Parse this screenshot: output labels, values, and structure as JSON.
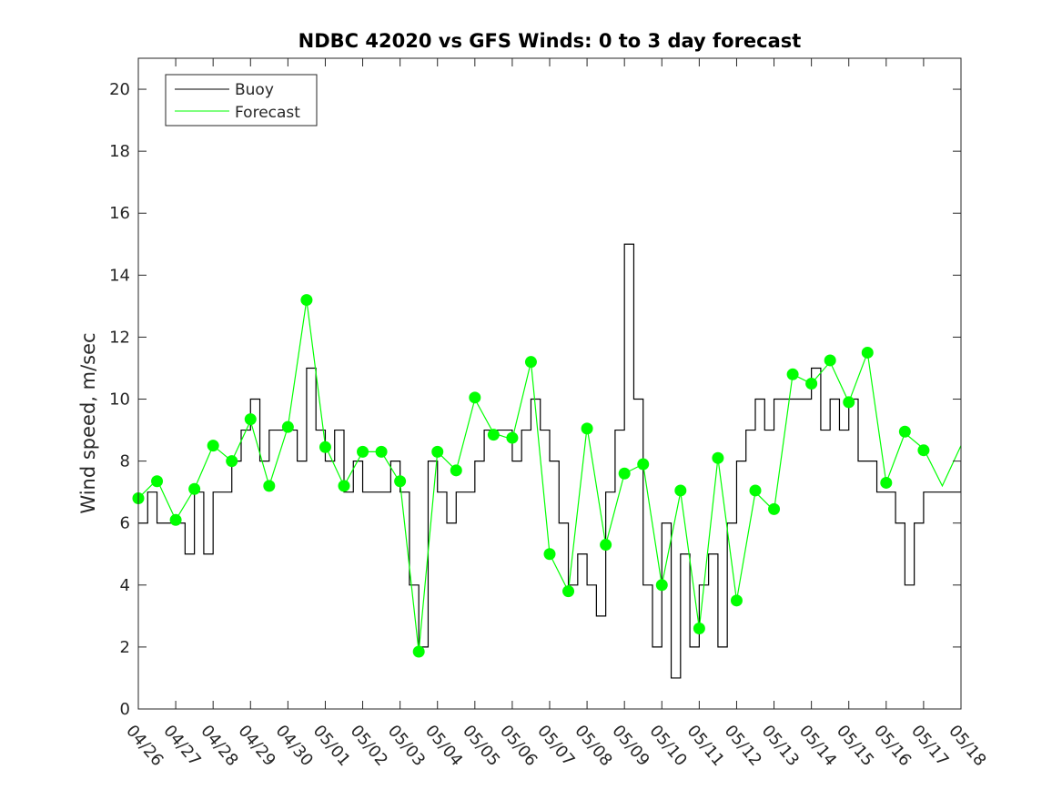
{
  "chart_data": {
    "type": "line",
    "title": "NDBC 42020 vs GFS Winds: 0 to 3 day forecast",
    "xlabel": "",
    "ylabel": "Wind speed, m/sec",
    "ylim": [
      0,
      21
    ],
    "xlim": [
      0,
      22
    ],
    "yticks": [
      0,
      2,
      4,
      6,
      8,
      10,
      12,
      14,
      16,
      18,
      20
    ],
    "xtick_labels": [
      "04/26",
      "04/27",
      "04/28",
      "04/29",
      "04/30",
      "05/01",
      "05/02",
      "05/03",
      "05/04",
      "05/05",
      "05/06",
      "05/07",
      "05/08",
      "05/09",
      "05/10",
      "05/11",
      "05/12",
      "05/13",
      "05/14",
      "05/15",
      "05/16",
      "05/17",
      "05/18"
    ],
    "grid": false,
    "legend": {
      "placement": "top-left",
      "entries": [
        "Buoy",
        "Forecast"
      ]
    },
    "colors": {
      "buoy": "#000000",
      "forecast": "#00ff00",
      "axis": "#262626"
    },
    "series": [
      {
        "name": "Buoy",
        "x_unit": "days since 04/26",
        "x": [
          0,
          0.25,
          0.5,
          0.75,
          1,
          1.25,
          1.5,
          1.75,
          2,
          2.25,
          2.5,
          2.75,
          3,
          3.25,
          3.5,
          3.75,
          4,
          4.25,
          4.5,
          4.75,
          5,
          5.25,
          5.5,
          5.75,
          6,
          6.25,
          6.5,
          6.75,
          7,
          7.25,
          7.5,
          7.75,
          8,
          8.25,
          8.5,
          8.75,
          9,
          9.25,
          9.5,
          9.75,
          10,
          10.25,
          10.5,
          10.75,
          11,
          11.25,
          11.5,
          11.75,
          12,
          12.25,
          12.5,
          12.75,
          13,
          13.25,
          13.5,
          13.75,
          14,
          14.25,
          14.5,
          14.75,
          15,
          15.25,
          15.5,
          15.75,
          16,
          16.25,
          16.5,
          16.75,
          17,
          17.25,
          17.5,
          17.75,
          18,
          18.25,
          18.5,
          18.75,
          19,
          19.25,
          19.5,
          19.75,
          20,
          20.25,
          20.5,
          20.75,
          21,
          21.25,
          21.5,
          21.75,
          22
        ],
        "y": [
          6,
          7,
          6,
          6,
          6,
          5,
          7,
          5,
          7,
          7,
          8,
          9,
          10,
          8,
          9,
          9,
          9,
          8,
          11,
          9,
          8,
          9,
          7,
          8,
          7,
          7,
          7,
          8,
          7,
          4,
          2,
          8,
          7,
          6,
          7,
          7,
          8,
          9,
          9,
          9,
          8,
          9,
          10,
          9,
          8,
          6,
          4,
          5,
          4,
          3,
          7,
          9,
          15,
          10,
          4,
          2,
          6,
          1,
          5,
          2,
          4,
          5,
          2,
          6,
          8,
          9,
          10,
          9,
          10,
          10,
          10,
          10,
          11,
          9,
          10,
          9,
          10,
          8,
          8,
          7,
          7,
          6,
          4,
          6,
          7,
          7,
          7,
          7,
          8
        ]
      },
      {
        "name": "Forecast",
        "x": [
          0,
          0.5,
          1,
          1.5,
          2,
          2.5,
          3,
          3.5,
          4,
          4.5,
          5,
          5.5,
          6,
          6.5,
          7,
          7.5,
          8,
          8.5,
          9,
          9.5,
          10,
          10.5,
          11,
          11.5,
          12,
          12.5,
          13,
          13.5,
          14,
          14.5,
          15,
          15.5,
          16,
          16.5,
          17,
          17.5,
          18,
          18.5,
          19,
          19.5,
          20,
          20.5,
          21,
          21.5,
          22
        ],
        "y": [
          6.8,
          7.4,
          6.1,
          7.1,
          8.5,
          8.0,
          9.3,
          7.2,
          9.1,
          13.2,
          8.5,
          7.2,
          8.3,
          8.3,
          7.3,
          1.85,
          8.3,
          7.7,
          10.0,
          8.9,
          8.7,
          11.2,
          5.0,
          3.8,
          9.1,
          5.3,
          7.6,
          7.9,
          4.0,
          7.0,
          2.6,
          8.1,
          3.5,
          7.0,
          6.4,
          10.8,
          10.5,
          11.2,
          9.9,
          11.5,
          7.3,
          8.9,
          8.4,
          7.2,
          8.5
        ]
      }
    ],
    "markers": {
      "x": [
        0,
        0.5,
        1,
        1.5,
        2,
        2.5,
        3,
        3.5,
        4,
        4.5,
        5,
        5.5,
        6,
        6.5,
        7,
        7.5,
        8,
        8.5,
        9,
        9.5,
        10,
        10.5,
        11,
        11.5,
        12,
        12.5,
        13,
        13.5,
        14,
        14.5,
        15,
        15.5,
        16,
        16.5,
        17,
        17.5,
        18,
        18.5,
        19,
        19.5,
        20,
        20.5,
        21
      ],
      "y": [
        6.8,
        7.35,
        6.1,
        7.1,
        8.5,
        8.0,
        9.35,
        7.2,
        9.1,
        13.2,
        8.45,
        7.2,
        8.3,
        8.3,
        7.35,
        1.85,
        8.3,
        7.7,
        10.05,
        8.85,
        8.75,
        11.2,
        5.0,
        3.8,
        9.05,
        5.3,
        7.6,
        7.9,
        4.0,
        7.05,
        2.6,
        8.1,
        3.5,
        7.05,
        6.45,
        10.8,
        10.5,
        11.25,
        9.9,
        11.5,
        7.3,
        8.95,
        8.35
      ]
    }
  }
}
